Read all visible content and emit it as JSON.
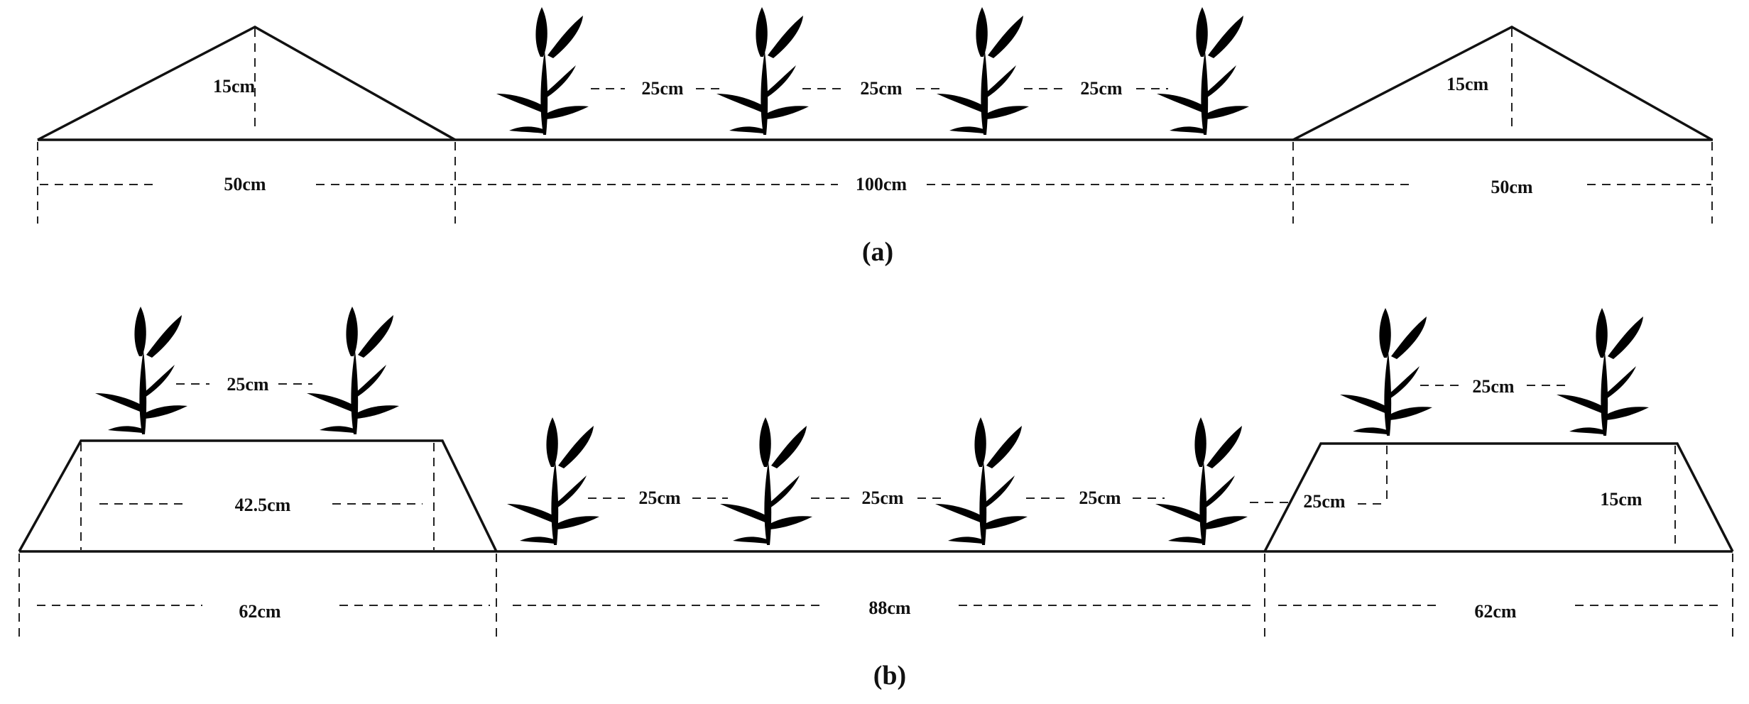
{
  "panel_a": {
    "caption": "(a)",
    "ridge_height": "15cm",
    "ridge_width": "50cm",
    "furrow_width": "100cm",
    "plant_spacing": "25cm"
  },
  "panel_b": {
    "caption": "(b)",
    "bed_height": "15cm",
    "bed_top_width": "42.5cm",
    "bed_bottom_width": "62cm",
    "furrow_width": "88cm",
    "plant_spacing": "25cm"
  }
}
